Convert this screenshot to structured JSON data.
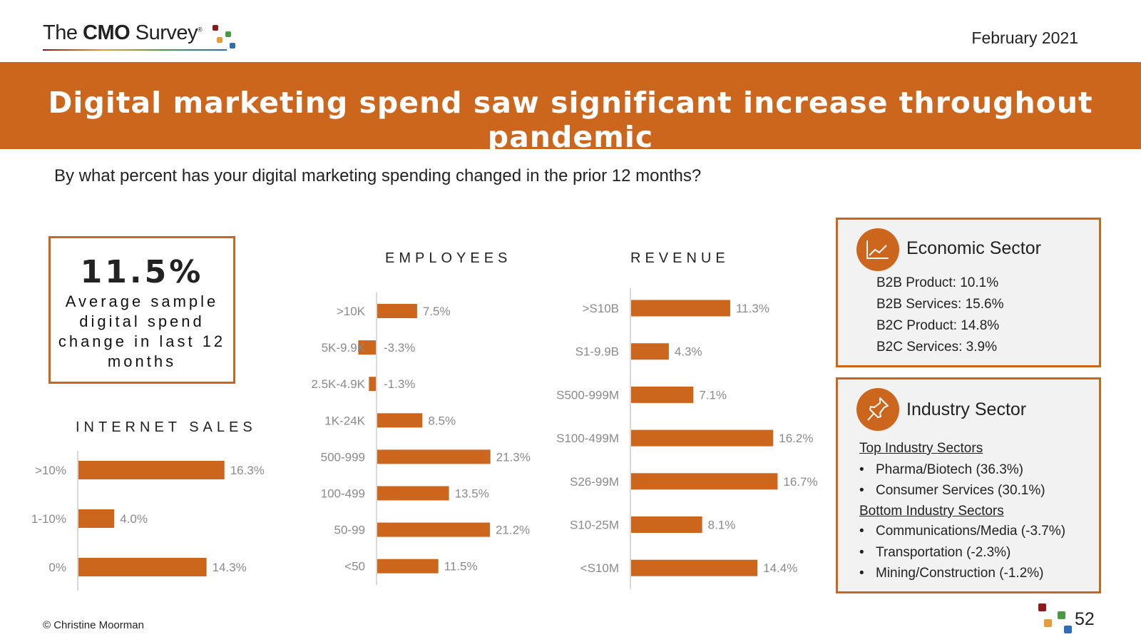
{
  "header": {
    "logo_text_pre": "The ",
    "logo_text_bold": "CMO",
    "logo_text_post": " Survey",
    "logo_reg": "®",
    "date": "February 2021",
    "title": "Digital marketing spend saw significant increase throughout pandemic",
    "question": "By what percent has your digital marketing spending changed in the prior 12 months?"
  },
  "average": {
    "value": "11.5%",
    "label": "Average sample digital spend change in last 12 months"
  },
  "chart_data": [
    {
      "type": "bar",
      "orientation": "horizontal",
      "title": "INTERNET SALES",
      "categories": [
        ">10%",
        "1-10%",
        "0%"
      ],
      "values": [
        16.3,
        4.0,
        14.3
      ],
      "value_labels": [
        "16.3%",
        "4.0%",
        "14.3%"
      ],
      "color": "#cd661d"
    },
    {
      "type": "bar",
      "orientation": "horizontal",
      "title": "EMPLOYEES",
      "categories": [
        ">10K",
        "5K-9.9K",
        "2.5K-4.9K",
        "1K-24K",
        "500-999",
        "100-499",
        "50-99",
        "<50"
      ],
      "values": [
        7.5,
        -3.3,
        -1.3,
        8.5,
        21.3,
        13.5,
        21.2,
        11.5
      ],
      "value_labels": [
        "7.5%",
        "-3.3%",
        "-1.3%",
        "8.5%",
        "21.3%",
        "13.5%",
        "21.2%",
        "11.5%"
      ],
      "color": "#cd661d"
    },
    {
      "type": "bar",
      "orientation": "horizontal",
      "title": "REVENUE",
      "categories": [
        ">S10B",
        "S1-9.9B",
        "S500-999M",
        "S100-499M",
        "S26-99M",
        "S10-25M",
        "<S10M"
      ],
      "values": [
        11.3,
        4.3,
        7.1,
        16.2,
        16.7,
        8.1,
        14.4
      ],
      "value_labels": [
        "11.3%",
        "4.3%",
        "7.1%",
        "16.2%",
        "16.7%",
        "8.1%",
        "14.4%"
      ],
      "color": "#cd661d"
    }
  ],
  "economic_sector": {
    "title": "Economic Sector",
    "icon": "line-chart-icon",
    "items": [
      "B2B Product: 10.1%",
      "B2B Services: 15.6%",
      "B2C Product: 14.8%",
      "B2C Services: 3.9%"
    ]
  },
  "industry_sector": {
    "title": "Industry Sector",
    "icon": "pushpin-icon",
    "top_heading": "Top Industry Sectors",
    "top_items": [
      "Pharma/Biotech (36.3%)",
      "Consumer Services (30.1%)"
    ],
    "bottom_heading": "Bottom Industry Sectors",
    "bottom_items": [
      "Communications/Media (-3.7%)",
      "Transportation (-2.3%)",
      "Mining/Construction (-1.2%)"
    ]
  },
  "footer": {
    "copyright": "© Christine Moorman",
    "page_number": "52"
  },
  "colors": {
    "accent": "#cd661d",
    "logo_red": "#8b1a1a",
    "logo_orange": "#e59c3b",
    "logo_green": "#4a9a44",
    "logo_blue": "#2e6db4"
  }
}
